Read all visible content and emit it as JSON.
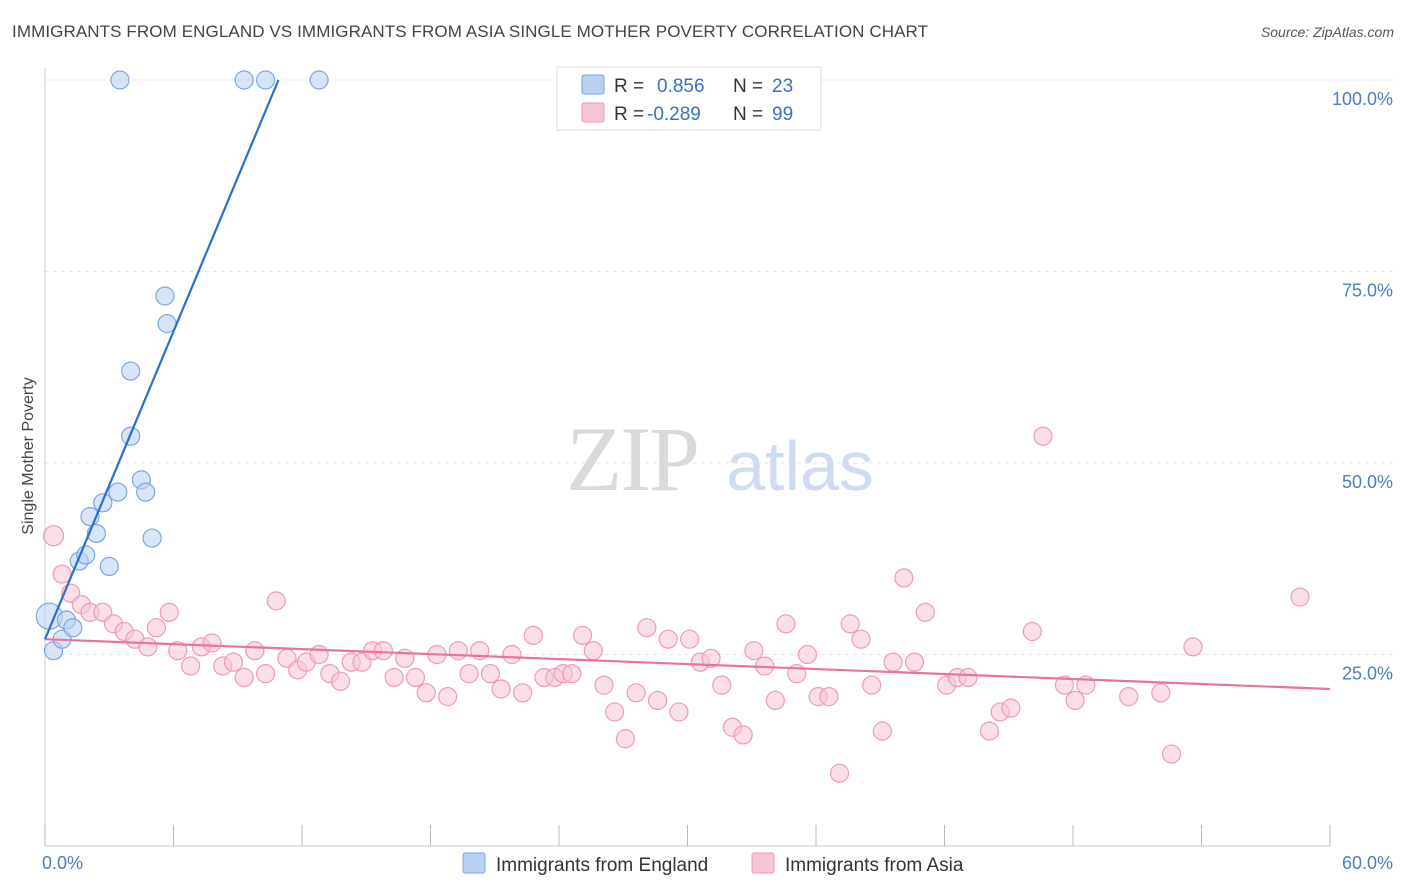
{
  "header": {
    "title": "IMMIGRANTS FROM ENGLAND VS IMMIGRANTS FROM ASIA SINGLE MOTHER POVERTY CORRELATION CHART",
    "source": "Source: ZipAtlas.com"
  },
  "watermark": {
    "zip": "ZIP",
    "atlas": "atlas"
  },
  "colors": {
    "england_fill": "#b8d0f2",
    "england_stroke": "#7aa6e0",
    "england_line": "#2a6fcc",
    "asia_fill": "#f7c4d6",
    "asia_stroke": "#ee9ab8",
    "asia_line": "#e8739c",
    "tick_label": "#4d7cc4",
    "grid": "#e3e3e3"
  },
  "legend": {
    "rows": [
      {
        "r_label": "R =",
        "r_value": "0.856",
        "n_label": "N =",
        "n_value": "23"
      },
      {
        "r_label": "R =",
        "r_value": "-0.289",
        "n_label": "N =",
        "n_value": "99"
      }
    ]
  },
  "chart_data": {
    "type": "scatter",
    "title": "IMMIGRANTS FROM ENGLAND VS IMMIGRANTS FROM ASIA SINGLE MOTHER POVERTY CORRELATION CHART",
    "xlabel": "",
    "ylabel": "Single Mother Poverty",
    "xlim": [
      0,
      60
    ],
    "ylim": [
      0,
      105
    ],
    "x_tick_labels": [
      "0.0%",
      "60.0%"
    ],
    "y_ticks": [
      25,
      50,
      75,
      100
    ],
    "y_tick_labels": [
      "25.0%",
      "50.0%",
      "75.0%",
      "100.0%"
    ],
    "grid": true,
    "legend_position": "top-center",
    "series": [
      {
        "name": "Immigrants from England",
        "r": 0.856,
        "n": 23,
        "trend": [
          [
            0.0,
            27.0
          ],
          [
            10.9,
            100.0
          ]
        ],
        "points": [
          [
            0.2,
            30.0,
            13
          ],
          [
            0.4,
            25.5,
            9
          ],
          [
            0.8,
            27.0,
            9
          ],
          [
            1.0,
            29.5,
            9
          ],
          [
            1.3,
            28.5,
            9
          ],
          [
            1.6,
            37.2,
            9
          ],
          [
            1.9,
            38.0,
            9
          ],
          [
            2.1,
            43.0,
            9
          ],
          [
            2.4,
            40.8,
            9
          ],
          [
            2.7,
            44.8,
            9
          ],
          [
            3.0,
            36.5,
            9
          ],
          [
            3.4,
            46.2,
            9
          ],
          [
            4.0,
            53.5,
            9
          ],
          [
            4.0,
            62.0,
            9
          ],
          [
            4.5,
            47.8,
            9
          ],
          [
            4.7,
            46.2,
            9
          ],
          [
            5.0,
            40.2,
            9
          ],
          [
            5.6,
            71.8,
            9
          ],
          [
            5.7,
            68.2,
            9
          ],
          [
            3.5,
            100.0,
            9
          ],
          [
            9.3,
            100.0,
            9
          ],
          [
            10.3,
            100.0,
            9
          ],
          [
            12.8,
            100.0,
            9
          ]
        ]
      },
      {
        "name": "Immigrants from Asia",
        "r": -0.289,
        "n": 99,
        "trend": [
          [
            0.0,
            27.0
          ],
          [
            60.0,
            20.5
          ]
        ],
        "points": [
          [
            0.4,
            40.5,
            10
          ],
          [
            0.8,
            35.5,
            9
          ],
          [
            1.2,
            33.0,
            9
          ],
          [
            1.7,
            31.5,
            9
          ],
          [
            2.1,
            30.5,
            9
          ],
          [
            2.7,
            30.5,
            9
          ],
          [
            3.2,
            29.0,
            9
          ],
          [
            3.7,
            28.0,
            9
          ],
          [
            4.2,
            27.0,
            9
          ],
          [
            4.8,
            26.0,
            9
          ],
          [
            5.2,
            28.5,
            9
          ],
          [
            5.8,
            30.5,
            9
          ],
          [
            6.2,
            25.5,
            9
          ],
          [
            6.8,
            23.5,
            9
          ],
          [
            7.3,
            26.0,
            9
          ],
          [
            7.8,
            26.5,
            9
          ],
          [
            8.3,
            23.5,
            9
          ],
          [
            8.8,
            24.0,
            9
          ],
          [
            9.3,
            22.0,
            9
          ],
          [
            9.8,
            25.5,
            9
          ],
          [
            10.3,
            22.5,
            9
          ],
          [
            10.8,
            32.0,
            9
          ],
          [
            11.3,
            24.5,
            9
          ],
          [
            11.8,
            23.0,
            9
          ],
          [
            12.2,
            24.0,
            9
          ],
          [
            12.8,
            25.0,
            9
          ],
          [
            13.3,
            22.5,
            9
          ],
          [
            13.8,
            21.5,
            9
          ],
          [
            14.3,
            24.0,
            9
          ],
          [
            14.8,
            24.0,
            9
          ],
          [
            15.3,
            25.5,
            9
          ],
          [
            15.8,
            25.5,
            9
          ],
          [
            16.3,
            22.0,
            9
          ],
          [
            16.8,
            24.5,
            9
          ],
          [
            17.3,
            22.0,
            9
          ],
          [
            17.8,
            20.0,
            9
          ],
          [
            18.3,
            25.0,
            9
          ],
          [
            18.8,
            19.5,
            9
          ],
          [
            19.3,
            25.5,
            9
          ],
          [
            19.8,
            22.5,
            9
          ],
          [
            20.3,
            25.5,
            9
          ],
          [
            20.8,
            22.5,
            9
          ],
          [
            21.3,
            20.5,
            9
          ],
          [
            21.8,
            25.0,
            9
          ],
          [
            22.3,
            20.0,
            9
          ],
          [
            22.8,
            27.5,
            9
          ],
          [
            23.3,
            22.0,
            9
          ],
          [
            23.8,
            22.0,
            9
          ],
          [
            24.2,
            22.5,
            9
          ],
          [
            24.6,
            22.5,
            9
          ],
          [
            25.1,
            27.5,
            9
          ],
          [
            25.6,
            25.5,
            9
          ],
          [
            26.1,
            21.0,
            9
          ],
          [
            26.6,
            17.5,
            9
          ],
          [
            27.1,
            14.0,
            9
          ],
          [
            27.6,
            20.0,
            9
          ],
          [
            28.1,
            28.5,
            9
          ],
          [
            28.6,
            19.0,
            9
          ],
          [
            29.1,
            27.0,
            9
          ],
          [
            29.6,
            17.5,
            9
          ],
          [
            30.1,
            27.0,
            9
          ],
          [
            30.6,
            24.0,
            9
          ],
          [
            31.1,
            24.5,
            9
          ],
          [
            31.6,
            21.0,
            9
          ],
          [
            32.1,
            15.5,
            9
          ],
          [
            32.6,
            14.5,
            9
          ],
          [
            33.1,
            25.5,
            9
          ],
          [
            33.6,
            23.5,
            9
          ],
          [
            34.1,
            19.0,
            9
          ],
          [
            34.6,
            29.0,
            9
          ],
          [
            35.1,
            22.5,
            9
          ],
          [
            35.6,
            25.0,
            9
          ],
          [
            36.1,
            19.5,
            9
          ],
          [
            36.6,
            19.5,
            9
          ],
          [
            37.1,
            9.5,
            9
          ],
          [
            37.6,
            29.0,
            9
          ],
          [
            38.1,
            27.0,
            9
          ],
          [
            38.6,
            21.0,
            9
          ],
          [
            39.1,
            15.0,
            9
          ],
          [
            39.6,
            24.0,
            9
          ],
          [
            40.1,
            35.0,
            9
          ],
          [
            40.6,
            24.0,
            9
          ],
          [
            41.1,
            30.5,
            9
          ],
          [
            42.1,
            21.0,
            9
          ],
          [
            42.6,
            22.0,
            9
          ],
          [
            43.1,
            22.0,
            9
          ],
          [
            44.1,
            15.0,
            9
          ],
          [
            44.6,
            17.5,
            9
          ],
          [
            45.1,
            18.0,
            9
          ],
          [
            46.1,
            28.0,
            9
          ],
          [
            46.6,
            53.5,
            9
          ],
          [
            47.6,
            21.0,
            9
          ],
          [
            48.1,
            19.0,
            9
          ],
          [
            48.6,
            21.0,
            9
          ],
          [
            50.6,
            19.5,
            9
          ],
          [
            52.1,
            20.0,
            9
          ],
          [
            52.6,
            12.0,
            9
          ],
          [
            53.6,
            26.0,
            9
          ],
          [
            58.6,
            32.5,
            9
          ]
        ]
      }
    ]
  }
}
